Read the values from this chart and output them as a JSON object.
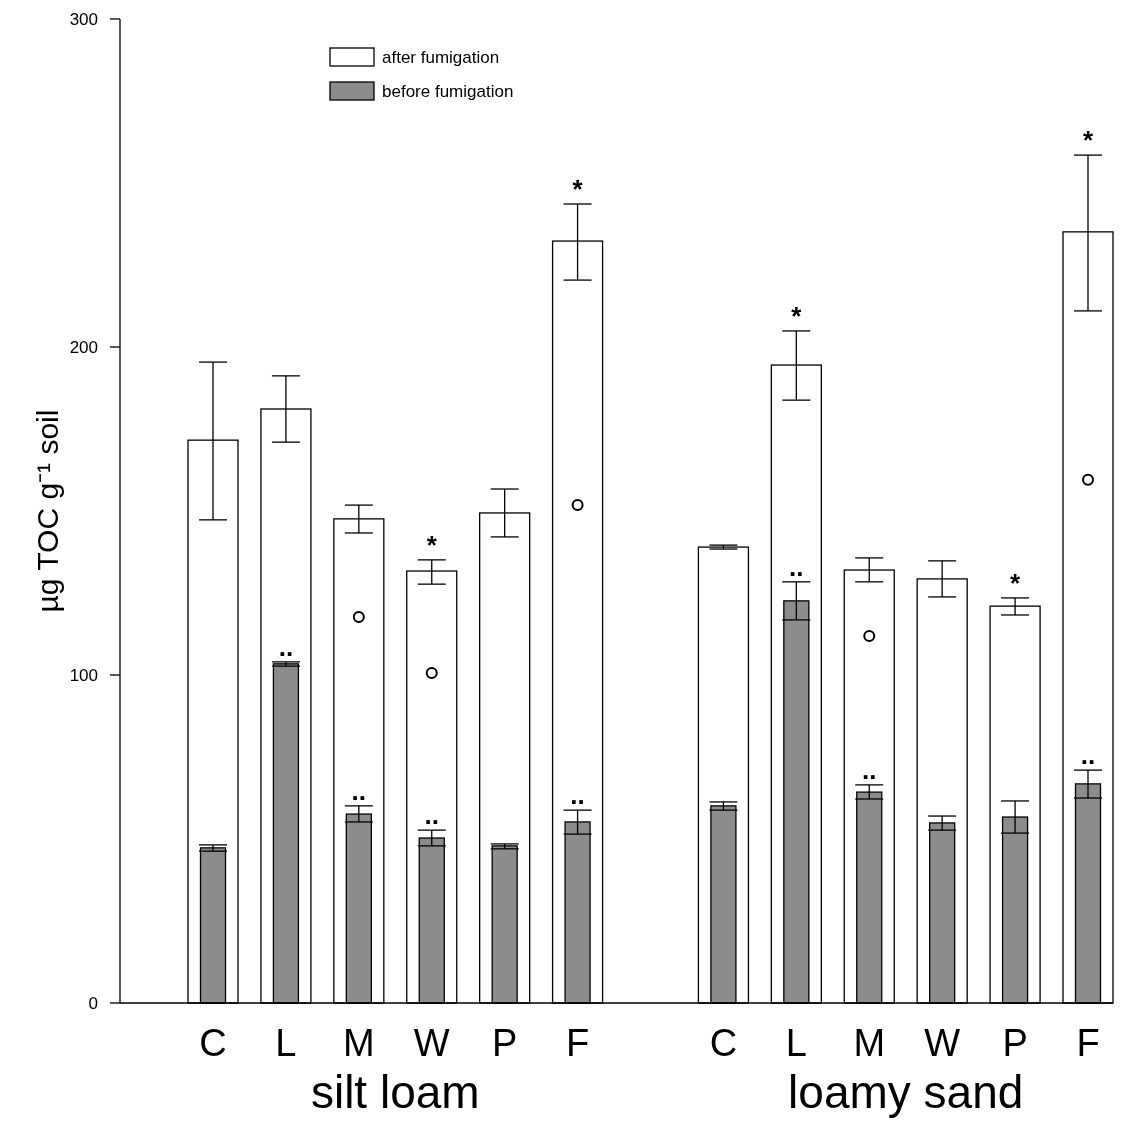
{
  "chart_data": {
    "type": "bar",
    "ylabel": "µg TOC g⁻¹ soil",
    "categories": [
      "C",
      "L",
      "M",
      "W",
      "P",
      "F",
      null,
      "C",
      "L",
      "M",
      "W",
      "P",
      "F"
    ],
    "ylim": [
      0,
      300
    ],
    "yticks": [
      0,
      100,
      200,
      300
    ],
    "grid": false,
    "legend": "top left",
    "marker": "circle",
    "series": [
      {
        "name": "after fumigation",
        "color": "#ffffff",
        "values": [
          171.6,
          181.1,
          147.6,
          131.7,
          149.4,
          232.3,
          null,
          139.0,
          194.5,
          132.0,
          129.3,
          121.0,
          235.1
        ],
        "errors": [
          [
            147.3,
            195.4
          ],
          [
            171.0,
            191.2
          ],
          [
            143.3,
            151.8
          ],
          [
            127.7,
            135.1
          ],
          [
            142.1,
            156.7
          ],
          [
            220.4,
            243.6
          ],
          null,
          [
            138.4,
            139.6
          ],
          [
            183.8,
            204.9
          ],
          [
            128.4,
            135.7
          ],
          [
            123.8,
            134.8
          ],
          [
            118.3,
            123.5
          ],
          [
            211.0,
            258.5
          ]
        ],
        "value_labels": [
          null,
          null,
          null,
          "*",
          null,
          "*",
          null,
          null,
          "*",
          null,
          null,
          "*",
          "*"
        ]
      },
      {
        "name": "before fumigation",
        "color": "#8c8c8c",
        "values": [
          47.3,
          103.4,
          57.6,
          50.3,
          47.9,
          55.2,
          null,
          60.1,
          122.6,
          64.3,
          54.9,
          56.7,
          66.8
        ],
        "errors": [
          [
            46.3,
            48.2
          ],
          [
            102.7,
            104.0
          ],
          [
            55.2,
            60.1
          ],
          [
            47.9,
            52.7
          ],
          [
            47.0,
            48.5
          ],
          [
            51.5,
            58.8
          ],
          null,
          [
            58.8,
            61.3
          ],
          [
            116.8,
            128.4
          ],
          [
            62.2,
            66.5
          ],
          [
            52.7,
            57.0
          ],
          [
            51.8,
            61.6
          ],
          [
            62.5,
            71.0
          ]
        ],
        "value_labels": [
          null,
          "..",
          "..",
          "..",
          null,
          "..",
          null,
          null,
          "..",
          "..",
          null,
          null,
          ".."
        ]
      },
      {
        "type": "scatter",
        "color": "#000000",
        "values": [
          null,
          null,
          117.7,
          100.6,
          null,
          151.8,
          null,
          null,
          null,
          111.9,
          null,
          null,
          159.5
        ]
      }
    ],
    "annotations": [
      "silt loam",
      "loamy sand"
    ]
  }
}
